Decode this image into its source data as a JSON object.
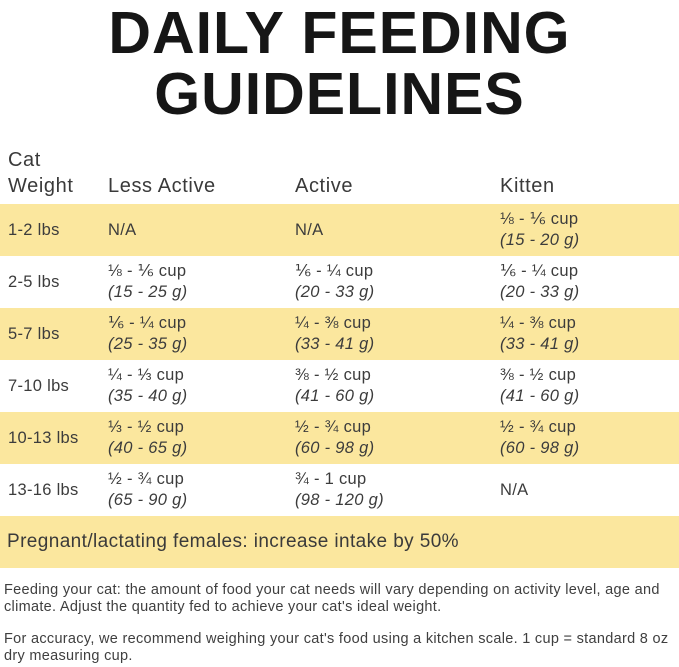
{
  "title": {
    "line1": "DAILY FEEDING",
    "line2": "GUIDELINES"
  },
  "colors": {
    "highlight_yellow": "#FBE79E",
    "body_text": "#3C3C3C",
    "title_text": "#161616"
  },
  "table": {
    "headers": {
      "col1_line1": "Cat",
      "col1_line2": "Weight",
      "col2": "Less Active",
      "col3": "Active",
      "col4": "Kitten"
    },
    "rows": [
      {
        "weight": "1-2 lbs",
        "less_active": {
          "cups": "N/A",
          "grams": ""
        },
        "active": {
          "cups": "N/A",
          "grams": ""
        },
        "kitten": {
          "cups": "⅛ - ⅙ cup",
          "grams": "(15 - 20 g)"
        }
      },
      {
        "weight": "2-5 lbs",
        "less_active": {
          "cups": "⅛ - ⅙ cup",
          "grams": "(15 - 25 g)"
        },
        "active": {
          "cups": "⅙ - ¼ cup",
          "grams": "(20 - 33 g)"
        },
        "kitten": {
          "cups": "⅙ - ¼ cup",
          "grams": "(20 - 33 g)"
        }
      },
      {
        "weight": "5-7 lbs",
        "less_active": {
          "cups": "⅙ - ¼ cup",
          "grams": "(25 - 35 g)"
        },
        "active": {
          "cups": "¼ - ⅜ cup",
          "grams": "(33 - 41 g)"
        },
        "kitten": {
          "cups": "¼ - ⅜ cup",
          "grams": "(33 - 41 g)"
        }
      },
      {
        "weight": "7-10 lbs",
        "less_active": {
          "cups": "¼ - ⅓ cup",
          "grams": "(35 - 40 g)"
        },
        "active": {
          "cups": "⅜ - ½ cup",
          "grams": "(41 - 60 g)"
        },
        "kitten": {
          "cups": "⅜ - ½ cup",
          "grams": "(41 - 60 g)"
        }
      },
      {
        "weight": "10-13 lbs",
        "less_active": {
          "cups": "⅓ - ½ cup",
          "grams": "(40 - 65 g)"
        },
        "active": {
          "cups": "½ - ¾ cup",
          "grams": "(60 - 98 g)"
        },
        "kitten": {
          "cups": "½ - ¾ cup",
          "grams": "(60 - 98 g)"
        }
      },
      {
        "weight": "13-16 lbs",
        "less_active": {
          "cups": "½ - ¾ cup",
          "grams": "(65 - 90 g)"
        },
        "active": {
          "cups": "¾ - 1 cup",
          "grams": "(98 - 120 g)"
        },
        "kitten": {
          "cups": "N/A",
          "grams": ""
        }
      }
    ]
  },
  "note_band": "Pregnant/lactating females: increase intake by 50%",
  "footnotes": [
    "Feeding your cat: the amount of food your cat needs will vary depending on activity level, age and climate. Adjust the quantity fed to achieve your cat's ideal weight.",
    "For accuracy, we recommend weighing your cat's food using a kitchen scale. 1 cup = standard 8 oz dry measuring cup."
  ]
}
